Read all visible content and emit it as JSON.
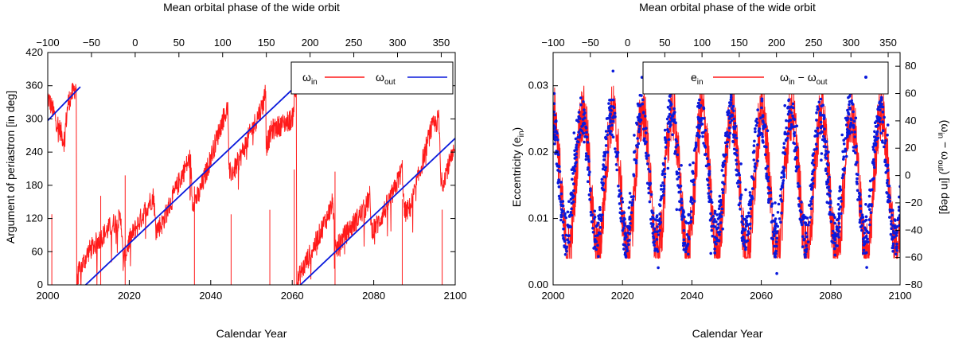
{
  "colors": {
    "inner": "#ff1a1a",
    "outer": "#0a1adc",
    "dots": "#0a1adc",
    "frame": "#000000"
  },
  "chart_data": [
    {
      "type": "line",
      "title": "",
      "top_axis": {
        "label": "Mean orbital phase of the wide orbit",
        "ticks": [
          "−100",
          "−50",
          "0",
          "50",
          "100",
          "150",
          "200",
          "250",
          "300",
          "350"
        ],
        "values": [
          -100,
          -50,
          0,
          50,
          100,
          150,
          200,
          250,
          300,
          350
        ],
        "lim": [
          -100,
          366
        ]
      },
      "xlabel": "Calendar Year",
      "xlim": [
        2000,
        2100
      ],
      "x_ticks": [
        "2000",
        "2020",
        "2040",
        "2060",
        "2080",
        "2100"
      ],
      "x_tick_values": [
        2000,
        2020,
        2040,
        2060,
        2080,
        2100
      ],
      "ylabel": "Argument of periastron [in deg]",
      "ylim": [
        0,
        420
      ],
      "y_ticks": [
        "0",
        "60",
        "120",
        "180",
        "240",
        "300",
        "360",
        "420"
      ],
      "y_tick_values": [
        0,
        60,
        120,
        180,
        240,
        300,
        360,
        420
      ],
      "legend": {
        "placement": "top-right",
        "entries": [
          {
            "base": "ω",
            "sub": "in",
            "series": "omega_in"
          },
          {
            "base": "ω",
            "sub": "out",
            "series": "omega_out"
          }
        ]
      },
      "series": [
        {
          "name": "omega_in",
          "style": "noisy-line",
          "anchors": [
            [
              2000,
              340
            ],
            [
              2004,
              260
            ],
            [
              2005,
              330
            ],
            [
              2007,
              360
            ],
            [
              2007.1,
              0
            ],
            [
              2007.5,
              20
            ],
            [
              2010,
              60
            ],
            [
              2016,
              110
            ],
            [
              2018,
              120
            ],
            [
              2018.5,
              40
            ],
            [
              2020,
              80
            ],
            [
              2025,
              150
            ],
            [
              2026,
              160
            ],
            [
              2026.5,
              100
            ],
            [
              2028,
              110
            ],
            [
              2033,
              200
            ],
            [
              2035,
              230
            ],
            [
              2035.5,
              150
            ],
            [
              2037,
              160
            ],
            [
              2043,
              300
            ],
            [
              2044.2,
              320
            ],
            [
              2044.5,
              200
            ],
            [
              2046,
              210
            ],
            [
              2053,
              330
            ],
            [
              2053.5,
              360
            ],
            [
              2053.6,
              250
            ],
            [
              2055,
              280
            ],
            [
              2060,
              300
            ],
            [
              2061,
              360
            ],
            [
              2061.1,
              0
            ],
            [
              2062,
              20
            ],
            [
              2066,
              80
            ],
            [
              2069,
              130
            ],
            [
              2070,
              150
            ],
            [
              2070.5,
              60
            ],
            [
              2072,
              80
            ],
            [
              2078,
              140
            ],
            [
              2079,
              160
            ],
            [
              2079.5,
              100
            ],
            [
              2081,
              110
            ],
            [
              2085,
              170
            ],
            [
              2087,
              210
            ],
            [
              2087.5,
              130
            ],
            [
              2089,
              140
            ],
            [
              2094,
              280
            ],
            [
              2096,
              300
            ],
            [
              2096.5,
              180
            ],
            [
              2098,
              210
            ],
            [
              2100,
              240
            ]
          ]
        },
        {
          "name": "omega_out",
          "style": "line",
          "segments": [
            [
              [
                2000,
                297
              ],
              [
                2008,
                358
              ]
            ],
            [
              [
                2009.3,
                0
              ],
              [
                2061,
                360
              ]
            ],
            [
              [
                2062,
                0
              ],
              [
                2100,
                265
              ]
            ]
          ]
        }
      ]
    },
    {
      "type": "scatter",
      "title": "",
      "top_axis": {
        "label": "Mean orbital phase of the wide orbit",
        "ticks": [
          "−100",
          "−50",
          "0",
          "50",
          "100",
          "150",
          "200",
          "250",
          "300",
          "350"
        ],
        "values": [
          -100,
          -50,
          0,
          50,
          100,
          150,
          200,
          250,
          300,
          350
        ],
        "lim": [
          -100,
          366
        ]
      },
      "xlabel": "Calendar Year",
      "xlim": [
        2000,
        2100
      ],
      "x_ticks": [
        "2000",
        "2020",
        "2040",
        "2060",
        "2080",
        "2100"
      ],
      "x_tick_values": [
        2000,
        2020,
        2040,
        2060,
        2080,
        2100
      ],
      "ylabel_left": {
        "base": "Eccentricity (e",
        "sub": "in",
        "tail": ")"
      },
      "ylim_left": [
        0,
        0.035
      ],
      "y_ticks_left": [
        "0.00",
        "0.01",
        "0.02",
        "0.03"
      ],
      "y_tick_values_left": [
        0,
        0.01,
        0.02,
        0.03
      ],
      "ylabel_right": {
        "pre": "(ω",
        "sub1": "in",
        "mid": " − ω",
        "sub2": "out",
        "tail": ") [in deg]"
      },
      "ylim_right": [
        -80,
        90
      ],
      "y_ticks_right": [
        "−80",
        "−60",
        "−40",
        "−20",
        "0",
        "20",
        "40",
        "60",
        "80"
      ],
      "y_tick_values_right": [
        -80,
        -60,
        -40,
        -20,
        0,
        20,
        40,
        60,
        80
      ],
      "legend": {
        "placement": "top-right",
        "entries": [
          {
            "base": "e",
            "sub": "in",
            "series": "e_in"
          },
          {
            "base": "ω",
            "sub": "in",
            "mid": " − ω",
            "sub2": "out",
            "series": "omega_diff"
          }
        ]
      },
      "period_years": 8.6,
      "series": [
        {
          "name": "e_in",
          "axis": "left",
          "style": "noisy-line",
          "min": 0.005,
          "max": 0.026,
          "phase": 0.0
        },
        {
          "name": "omega_diff",
          "axis": "right",
          "style": "dots",
          "min": -45,
          "max": 45,
          "phase": 0.3
        }
      ]
    }
  ]
}
